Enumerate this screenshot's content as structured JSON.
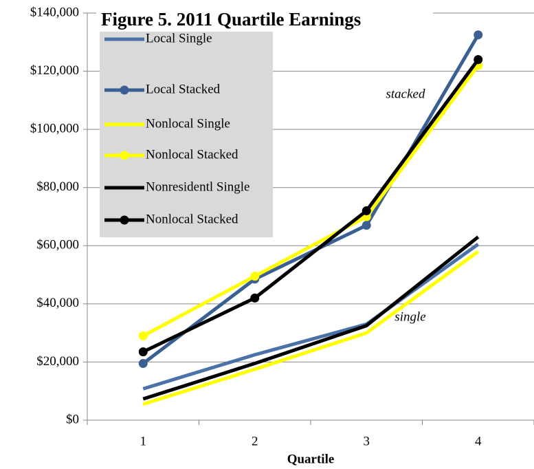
{
  "chart_data": {
    "type": "line",
    "title": "Figure 5. 2011 Quartile Earnings",
    "x_label": "Quartile",
    "categories": [
      "1",
      "2",
      "3",
      "4"
    ],
    "series": [
      {
        "name": "Local Single",
        "color": "#4a72a8",
        "marker": false,
        "values": [
          10800,
          22500,
          33000,
          60500
        ]
      },
      {
        "name": "Local Stacked",
        "color": "#3a5f92",
        "marker": true,
        "values": [
          19500,
          48500,
          67000,
          132500
        ]
      },
      {
        "name": "Nonlocal Single",
        "color": "#ffff00",
        "marker": false,
        "values": [
          5500,
          17500,
          30000,
          58000
        ]
      },
      {
        "name": "Nonlocal Stacked",
        "color": "#ffff00",
        "marker": true,
        "values": [
          29000,
          49500,
          70000,
          122000
        ]
      },
      {
        "name": "Nonresidentl Single",
        "color": "#000000",
        "marker": false,
        "values": [
          7300,
          19500,
          32500,
          63000
        ]
      },
      {
        "name": "Nonlocal Stacked",
        "color": "#000000",
        "marker": true,
        "values": [
          23500,
          42000,
          72000,
          124000
        ]
      }
    ],
    "annotations": [
      "stacked",
      "single"
    ],
    "ylim": [
      0,
      140000
    ],
    "yticks": [
      {
        "value": 0,
        "label": "$0"
      },
      {
        "value": 20000,
        "label": "$20,000"
      },
      {
        "value": 40000,
        "label": "$40,000"
      },
      {
        "value": 60000,
        "label": "$60,000"
      },
      {
        "value": 80000,
        "label": "$80,000"
      },
      {
        "value": 100000,
        "label": "$100,000"
      },
      {
        "value": 120000,
        "label": "$120,000"
      },
      {
        "value": 140000,
        "label": "$140,000"
      }
    ],
    "grid": true,
    "legend": "upper left"
  }
}
